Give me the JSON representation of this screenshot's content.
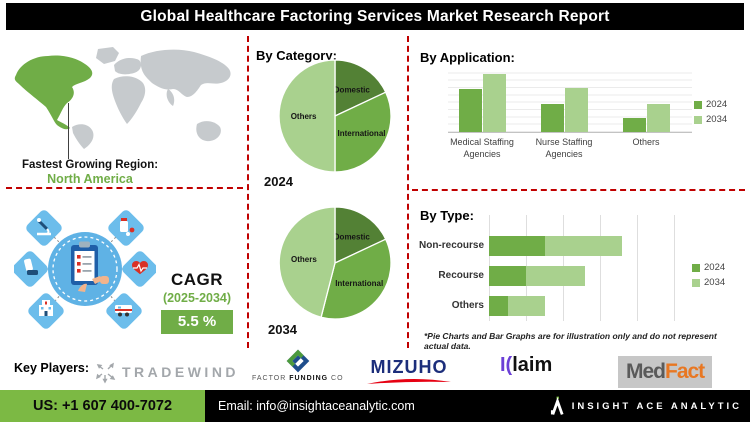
{
  "title": "Global Healthcare Factoring Services Market Research Report",
  "region": {
    "label": "Fastest Growing Region:",
    "value": "North America"
  },
  "cagr": {
    "label": "CAGR",
    "period": "(2025-2034)",
    "value": "5.5 %"
  },
  "sections": {
    "category": {
      "title": "By Category:"
    },
    "application": {
      "title": "By Application:"
    },
    "type": {
      "title": "By Type:",
      "footnote": "*Pie Charts and Bar Graphs are for illustration only and do not represent actual data."
    }
  },
  "illustration": {
    "center_icon": "clipboard-checklist",
    "icons": [
      "microscope",
      "medicine",
      "inhaler",
      "heart-pulse",
      "hospital",
      "ambulance"
    ]
  },
  "key_players": {
    "label": "Key Players:",
    "tradewind": {
      "name": "TRADEWIND"
    },
    "factor_funding": {
      "pre": "FACTOR ",
      "bold": "FUNDING",
      "post": " CO"
    },
    "mizuho": {
      "name": "MIZUHO"
    },
    "klaim": {
      "k": "I(",
      "rest": "laim"
    },
    "medfact": {
      "part1": "Med",
      "part2": "Fact"
    }
  },
  "footer": {
    "phone": "US: +1 607 400-7072",
    "email": "Email: info@insightaceanalytic.com",
    "brand": "INSIGHT ACE ANALYTIC"
  },
  "colors": {
    "dark_green": "#538135",
    "mid_green": "#70AD47",
    "light_green": "#A9D18E",
    "divider_red": "#C00000",
    "footer_green": "#7CB944",
    "map_gray": "#C6CACD",
    "illustration_blue": "#5FB2E5"
  },
  "chart_data": [
    {
      "id": "pie2024",
      "type": "pie",
      "title": "2024",
      "labels": [
        "Domestic",
        "International",
        "Others"
      ],
      "values": [
        18,
        32,
        50
      ],
      "colors": [
        "#538135",
        "#70AD47",
        "#A9D18E"
      ],
      "note": "illustrative"
    },
    {
      "id": "pie2034",
      "type": "pie",
      "title": "2034",
      "labels": [
        "Domestic",
        "International",
        "Others"
      ],
      "values": [
        18,
        36,
        46
      ],
      "colors": [
        "#538135",
        "#70AD47",
        "#A9D18E"
      ],
      "note": "illustrative"
    },
    {
      "id": "application",
      "type": "bar",
      "title": "By Application:",
      "categories": [
        "Medical Staffing Agencies",
        "Nurse Staffing Agencies",
        "Others"
      ],
      "series": [
        {
          "name": "2024",
          "color": "#70AD47",
          "values": [
            65,
            43,
            21
          ]
        },
        {
          "name": "2034",
          "color": "#A9D18E",
          "values": [
            88,
            67,
            43
          ]
        }
      ],
      "ylim": [
        0,
        100
      ],
      "grid": "horizontal",
      "legend_position": "right",
      "note": "illustrative"
    },
    {
      "id": "type",
      "type": "bar",
      "orientation": "horizontal",
      "stacked": true,
      "title": "By Type:",
      "categories": [
        "Non-recourse",
        "Recourse",
        "Others"
      ],
      "series": [
        {
          "name": "2024",
          "color": "#70AD47",
          "values": [
            15,
            10,
            5
          ]
        },
        {
          "name": "2034",
          "color": "#A9D18E",
          "values": [
            21,
            16,
            10
          ]
        }
      ],
      "xlim": [
        0,
        50
      ],
      "grid": "vertical",
      "legend_position": "right",
      "note": "illustrative"
    }
  ]
}
